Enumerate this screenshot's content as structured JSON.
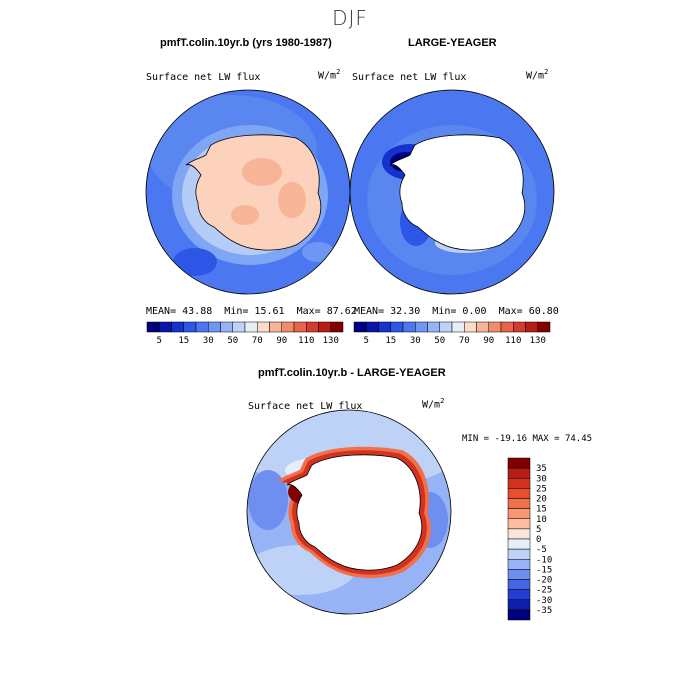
{
  "figure": {
    "title": "DJF"
  },
  "panels": [
    {
      "id": "model",
      "title": "pmfT.colin.10yr.b (yrs 1980-1987)",
      "variable": "Surface net LW flux",
      "units_base": "W/m",
      "units_exp": "2",
      "stats": {
        "mean_label": "MEAN=",
        "mean": "43.88",
        "min_label": "Min=",
        "min": "15.61",
        "max_label": "Max=",
        "max": "87.62"
      }
    },
    {
      "id": "obs",
      "title": "LARGE-YEAGER",
      "variable": "Surface net LW flux",
      "units_base": "W/m",
      "units_exp": "2",
      "stats": {
        "mean_label": "MEAN=",
        "mean": "32.30",
        "min_label": "Min=",
        "min": "0.00",
        "max_label": "Max=",
        "max": "60.80"
      }
    },
    {
      "id": "diff",
      "title": "pmfT.colin.10yr.b - LARGE-YEAGER",
      "variable": "Surface net LW flux",
      "units_base": "W/m",
      "units_exp": "2",
      "minmax_text": "MIN = -19.16 MAX =  74.45"
    }
  ],
  "colorbars": {
    "abs_tick_labels": [
      "5",
      "15",
      "30",
      "50",
      "70",
      "90",
      "110",
      "130"
    ],
    "abs_colors": [
      "#00007f",
      "#0a14a8",
      "#1432cc",
      "#2d55e6",
      "#4b78f0",
      "#6e96f5",
      "#96b4f5",
      "#bed2f8",
      "#e6eef8",
      "#fcdcc8",
      "#f8b496",
      "#f08c6e",
      "#e6644b",
      "#d23c2d",
      "#b41e14",
      "#820000"
    ],
    "diff_labels": [
      "35",
      "30",
      "25",
      "20",
      "15",
      "10",
      "5",
      "0",
      "-5",
      "-10",
      "-15",
      "-20",
      "-25",
      "-30",
      "-35"
    ],
    "diff_colors": [
      "#820000",
      "#b41e14",
      "#d2321e",
      "#e6502d",
      "#f0704b",
      "#f89673",
      "#fcbe9e",
      "#fae6d8",
      "#e6eefa",
      "#bed2f8",
      "#96b4f5",
      "#6e8ef0",
      "#4664e6",
      "#233cd2",
      "#0f1eaa",
      "#00007f"
    ]
  }
}
